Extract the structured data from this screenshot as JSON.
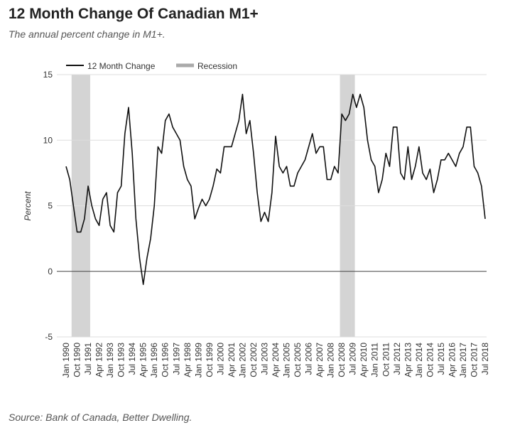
{
  "chart_data": {
    "type": "line",
    "title": "12 Month Change Of Canadian M1+",
    "subtitle": "The annual percent change in M1+.",
    "ylabel": "Percent",
    "source": "Source: Bank of Canada, Better Dwelling.",
    "categories": [
      "Jan 1990",
      null,
      null,
      "Oct 1990",
      null,
      null,
      "Jul 1991",
      null,
      null,
      "Apr 1992",
      null,
      null,
      "Jan 1993",
      null,
      null,
      "Oct 1993",
      null,
      null,
      "Jul 1994",
      null,
      null,
      "Apr 1995",
      null,
      null,
      "Jan 1996",
      null,
      null,
      "Oct 1996",
      null,
      null,
      "Jul 1997",
      null,
      null,
      "Apr 1998",
      null,
      null,
      "Jan 1999",
      null,
      null,
      "Oct 1999",
      null,
      null,
      "Jul 2000",
      null,
      null,
      "Apr 2001",
      null,
      null,
      "Jan 2002",
      null,
      null,
      "Oct 2002",
      null,
      null,
      "Jul 2003",
      null,
      null,
      "Apr 2004",
      null,
      null,
      "Jan 2005",
      null,
      null,
      "Oct 2005",
      null,
      null,
      "Jul 2006",
      null,
      null,
      "Apr 2007",
      null,
      null,
      "Jan 2008",
      null,
      null,
      "Oct 2008",
      null,
      null,
      "Jul 2009",
      null,
      null,
      "Apr 2010",
      null,
      null,
      "Jan 2011",
      null,
      null,
      "Oct 2011",
      null,
      null,
      "Jul 2012",
      null,
      null,
      "Apr 2013",
      null,
      null,
      "Jan 2014",
      null,
      null,
      "Oct 2014",
      null,
      null,
      "Jul 2015",
      null,
      null,
      "Apr 2016",
      null,
      null,
      "Jan 2017",
      null,
      null,
      "Oct 2017",
      null,
      null,
      "Jul 2018"
    ],
    "series": [
      {
        "name": "12 Month Change",
        "color": "#111111",
        "values": [
          8.0,
          7.0,
          5.0,
          3.0,
          3.0,
          4.0,
          6.5,
          5.0,
          4.0,
          3.5,
          5.5,
          6.0,
          3.5,
          3.0,
          6.0,
          6.5,
          10.5,
          12.5,
          9.0,
          4.0,
          1.0,
          -1.0,
          1.0,
          2.5,
          5.0,
          9.5,
          9.0,
          11.5,
          12.0,
          11.0,
          10.5,
          10.0,
          8.0,
          7.0,
          6.5,
          4.0,
          4.8,
          5.5,
          5.0,
          5.5,
          6.5,
          7.8,
          7.5,
          9.5,
          9.5,
          9.5,
          10.5,
          11.5,
          13.5,
          10.5,
          11.5,
          9.0,
          6.0,
          3.8,
          4.5,
          3.8,
          6.0,
          10.3,
          8.0,
          7.5,
          8.0,
          6.5,
          6.5,
          7.5,
          8.0,
          8.5,
          9.5,
          10.5,
          9.0,
          9.5,
          9.5,
          7.0,
          7.0,
          8.0,
          7.5,
          12.0,
          11.5,
          12.0,
          13.5,
          12.5,
          13.5,
          12.5,
          10.0,
          8.5,
          8.0,
          6.0,
          7.0,
          9.0,
          8.0,
          11.0,
          11.0,
          7.5,
          7.0,
          9.5,
          7.0,
          8.0,
          9.5,
          7.5,
          7.0,
          7.8,
          6.0,
          7.0,
          8.5,
          8.5,
          9.0,
          8.5,
          8.0,
          9.0,
          9.5,
          11.0,
          11.0,
          8.0,
          7.5,
          6.5,
          4.0
        ]
      },
      {
        "name": "Recession",
        "color": "#d4d4d4",
        "type": "band",
        "values": [
          null,
          null,
          1,
          1,
          1,
          1,
          1,
          null,
          null,
          null,
          null,
          null,
          null,
          null,
          null,
          null,
          null,
          null,
          null,
          null,
          null,
          null,
          null,
          null,
          null,
          null,
          null,
          null,
          null,
          null,
          null,
          null,
          null,
          null,
          null,
          null,
          null,
          null,
          null,
          null,
          null,
          null,
          null,
          null,
          null,
          null,
          null,
          null,
          null,
          null,
          null,
          null,
          null,
          null,
          null,
          null,
          null,
          null,
          null,
          null,
          null,
          null,
          null,
          null,
          null,
          null,
          null,
          null,
          null,
          null,
          null,
          null,
          null,
          null,
          null,
          1,
          1,
          1,
          1,
          null,
          null,
          null,
          null,
          null,
          null,
          null,
          null,
          null,
          null,
          null,
          null,
          null,
          null,
          null,
          null,
          null,
          null,
          null,
          null,
          null,
          null,
          null,
          null,
          null,
          null,
          null,
          null,
          null,
          null,
          null,
          null,
          null,
          null,
          null,
          null
        ]
      }
    ],
    "ylim": [
      -5,
      15
    ],
    "yticks": [
      -5,
      0,
      5,
      10,
      15
    ],
    "grid": true,
    "legend": "top"
  }
}
